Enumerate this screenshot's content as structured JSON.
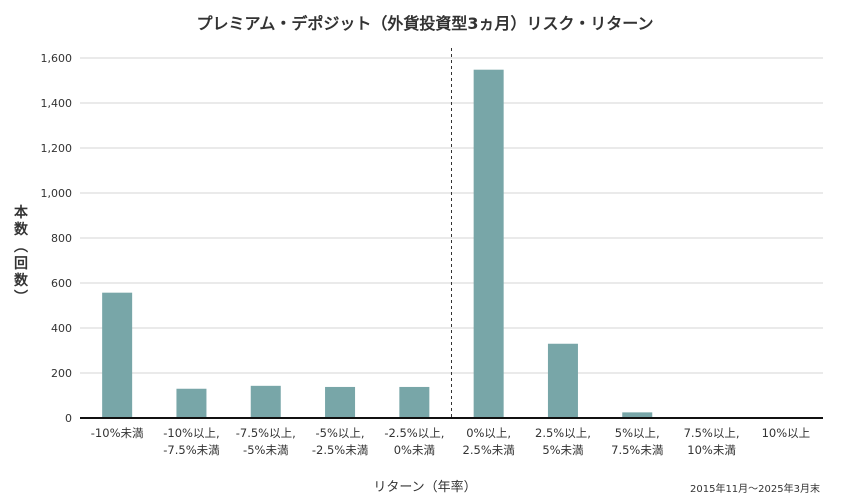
{
  "chart_data": {
    "type": "bar",
    "title": "プレミアム・デポジット（外貨投資型3ヵ月）リスク・リターン",
    "xlabel": "リターン（年率）",
    "ylabel": "本数（回数）",
    "note": "2015年11月〜2025年3月末",
    "categories": [
      "-10%未満",
      "-10%以上,\n-7.5%未満",
      "-7.5%以上,\n-5%未満",
      "-5%以上,\n-2.5%未満",
      "-2.5%以上,\n0%未満",
      "0%以上,\n2.5%未満",
      "2.5%以上,\n5%未満",
      "5%以上,\n7.5%未満",
      "7.5%以上,\n10%未満",
      "10%以上"
    ],
    "values": [
      557,
      130,
      143,
      138,
      138,
      1548,
      330,
      25,
      0,
      0
    ],
    "ylim": [
      0,
      1600
    ],
    "yticks": [
      0,
      200,
      400,
      600,
      800,
      1000,
      1200,
      1400,
      1600
    ],
    "ytick_labels": [
      "0",
      "200",
      "400",
      "600",
      "800",
      "1,000",
      "1,200",
      "1,400",
      "1,600"
    ],
    "grid": true,
    "divider_after_category_index": 4,
    "bar_color": "#78a6a8"
  }
}
